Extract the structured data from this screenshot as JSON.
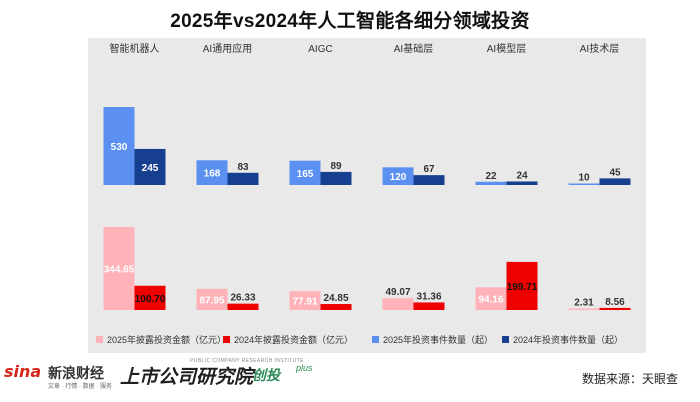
{
  "title": "2025年vs2024年人工智能各细分领域投资",
  "source": "数据来源：天眼查",
  "logos": {
    "sina_word": "sina",
    "sina_cn": "新浪财经",
    "sina_sub": "文章 · 行情 · 数据 · 服务",
    "inst_cn": "上市公司研究院",
    "inst_en": "PUBLIC COMPANY RESEARCH INSTITUTE",
    "inst_brand": "创投",
    "inst_plus": "plus"
  },
  "colors": {
    "invest_2025": "#ffb3b8",
    "invest_2024": "#ee0000",
    "events_2025": "#5b8ff0",
    "events_2024": "#173f8f",
    "panel": "#e9e9e9"
  },
  "chart_data": {
    "type": "bar",
    "title": "2025年vs2024年人工智能各细分领域投资",
    "categories": [
      "智能机器人",
      "AI通用应用",
      "AIGC",
      "AI基础层",
      "AI模型层",
      "AI技术层"
    ],
    "panels": [
      {
        "name": "events",
        "series": [
          {
            "name": "2025年投资事件数量（起）",
            "color": "#5b8ff0",
            "values": [
              530,
              168,
              165,
              120,
              22,
              10
            ]
          },
          {
            "name": "2024年投资事件数量（起）",
            "color": "#173f8f",
            "values": [
              245,
              83,
              89,
              67,
              24,
              45
            ]
          }
        ]
      },
      {
        "name": "amount",
        "series": [
          {
            "name": "2025年披露投资金额（亿元）",
            "color": "#ffb3b8",
            "values": [
              344.65,
              87.95,
              77.91,
              49.07,
              94.16,
              2.31
            ]
          },
          {
            "name": "2024年披露投资金额（亿元）",
            "color": "#ee0000",
            "values": [
              100.7,
              26.33,
              24.85,
              31.36,
              199.71,
              8.56
            ]
          }
        ]
      }
    ],
    "legend": [
      {
        "label": "2025年披露投资金额（亿元）",
        "color": "#ffb3b8"
      },
      {
        "label": "2024年披露投资金额（亿元）",
        "color": "#ee0000"
      },
      {
        "label": "2025年投资事件数量（起）",
        "color": "#5b8ff0"
      },
      {
        "label": "2024年投资事件数量（起）",
        "color": "#173f8f"
      }
    ],
    "legend_position": "bottom",
    "grid": false
  }
}
